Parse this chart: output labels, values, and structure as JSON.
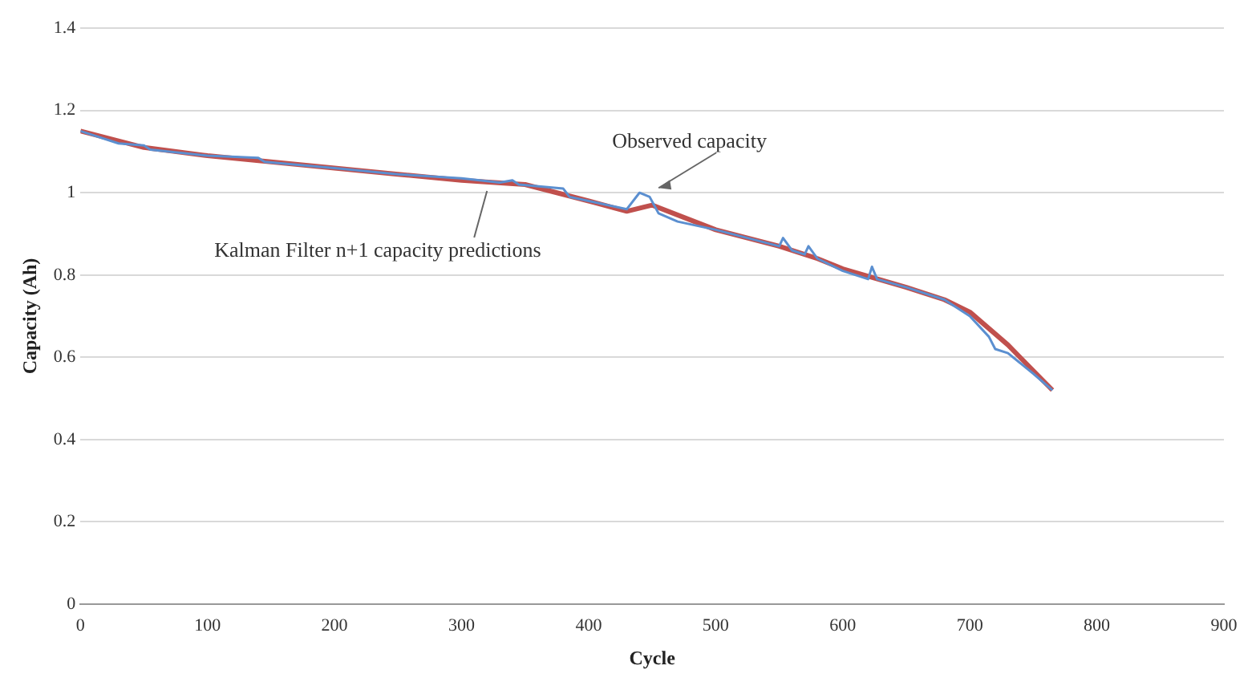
{
  "chart_data": {
    "type": "line",
    "xlabel": "Cycle",
    "ylabel": "Capacity (Ah)",
    "xlim": [
      0,
      900
    ],
    "xticks": [
      0,
      100,
      200,
      300,
      400,
      500,
      600,
      700,
      800,
      900
    ],
    "ylim": [
      0,
      1.4
    ],
    "yticks": [
      0,
      0.2,
      0.4,
      0.6,
      0.8,
      1,
      1.2,
      1.4
    ],
    "grid": "y",
    "legend": false,
    "marker": "none",
    "series": [
      {
        "color": "#5b8fd0",
        "x": [
          0,
          30,
          50,
          55,
          100,
          140,
          145,
          200,
          250,
          300,
          330,
          340,
          345,
          380,
          385,
          400,
          430,
          440,
          448,
          455,
          470,
          500,
          550,
          553,
          560,
          570,
          573,
          580,
          600,
          620,
          623,
          627,
          650,
          680,
          700,
          715,
          720,
          730,
          750,
          765
        ],
        "values": [
          1.15,
          1.12,
          1.115,
          1.105,
          1.09,
          1.085,
          1.075,
          1.06,
          1.045,
          1.035,
          1.025,
          1.03,
          1.02,
          1.01,
          0.99,
          0.98,
          0.96,
          1.0,
          0.99,
          0.95,
          0.93,
          0.91,
          0.87,
          0.89,
          0.86,
          0.85,
          0.87,
          0.84,
          0.81,
          0.79,
          0.82,
          0.79,
          0.77,
          0.74,
          0.7,
          0.65,
          0.62,
          0.61,
          0.56,
          0.52
        ]
      },
      {
        "color": "#c0504d",
        "x": [
          0,
          50,
          100,
          150,
          200,
          250,
          300,
          350,
          400,
          430,
          450,
          500,
          550,
          580,
          600,
          650,
          680,
          700,
          730,
          765
        ],
        "values": [
          1.15,
          1.11,
          1.09,
          1.075,
          1.06,
          1.045,
          1.03,
          1.02,
          0.98,
          0.955,
          0.97,
          0.91,
          0.87,
          0.84,
          0.815,
          0.77,
          0.74,
          0.71,
          0.63,
          0.52
        ]
      }
    ],
    "annotations": [
      {
        "text": "Observed capacity",
        "x": 450,
        "y": 1.0
      },
      {
        "text": "Kalman Filter n+1 capacity predictions",
        "x": 320,
        "y": 1.02
      }
    ]
  }
}
